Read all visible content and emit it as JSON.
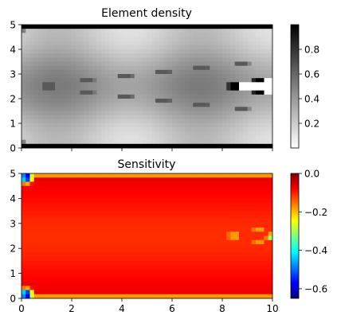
{
  "chart_data": [
    {
      "type": "heatmap",
      "title": "Element density",
      "xlabel": "",
      "ylabel": "",
      "xlim": [
        0,
        10
      ],
      "ylim": [
        0,
        5
      ],
      "x_ticks": [
        0,
        2,
        4,
        6,
        8,
        10
      ],
      "y_ticks": [
        0,
        1,
        2,
        3,
        4,
        5
      ],
      "show_x_tick_labels": false,
      "colormap": "gray_r",
      "grid": false,
      "colorbar": {
        "ticks": [
          0.2,
          0.4,
          0.6,
          0.8
        ],
        "range": [
          0.0,
          1.0
        ],
        "colors": [
          "#ffffff",
          "#000000"
        ]
      }
    },
    {
      "type": "heatmap",
      "title": "Sensitivity",
      "xlabel": "",
      "ylabel": "",
      "xlim": [
        0,
        10
      ],
      "ylim": [
        0,
        5
      ],
      "x_ticks": [
        0,
        2,
        4,
        6,
        8,
        10
      ],
      "y_ticks": [
        0,
        1,
        2,
        3,
        4,
        5
      ],
      "show_x_tick_labels": true,
      "colormap": "jet",
      "grid": false,
      "colorbar": {
        "ticks": [
          0.0,
          -0.2,
          -0.4,
          -0.6
        ],
        "range": [
          -0.65,
          0.0
        ],
        "colors": [
          "#00007f",
          "#0000ff",
          "#007fff",
          "#00ffff",
          "#7fff7f",
          "#ffff00",
          "#ff7f00",
          "#ff0000",
          "#7f0000"
        ]
      }
    }
  ]
}
